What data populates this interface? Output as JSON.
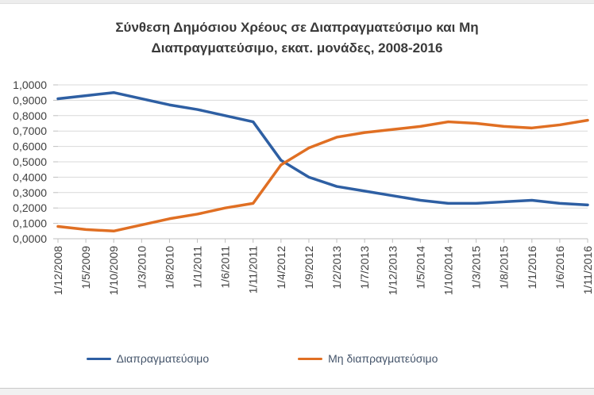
{
  "title": {
    "line1": "Σύνθεση Δημόσιου Χρέους σε Διαπραγματεύσιμο και Μη",
    "line2": "Διαπραγματεύσιμο, εκατ. μονάδες, 2008-2016"
  },
  "colors": {
    "series1": "#2E5FA3",
    "series2": "#E06F23",
    "gridline": "#d9d9d9",
    "axis": "#bfbfbf",
    "tick_text": "#404040",
    "title_text": "#3a3a3a",
    "legend_text": "#44546a"
  },
  "chart_data": {
    "type": "line",
    "title": "Σύνθεση Δημόσιου Χρέους σε Διαπραγματεύσιμο και Μη Διαπραγματεύσιμο, εκατ. μονάδες, 2008-2016",
    "xlabel": "",
    "ylabel": "",
    "grid": true,
    "legend_position": "bottom",
    "ylim": [
      0,
      1
    ],
    "ytick_step": 0.1,
    "ytick_labels": [
      "0,0000",
      "0,1000",
      "0,2000",
      "0,3000",
      "0,4000",
      "0,5000",
      "0,6000",
      "0,7000",
      "0,8000",
      "0,9000",
      "1,0000"
    ],
    "categories": [
      "1/12/2008",
      "1/5/2009",
      "1/10/2009",
      "1/3/2010",
      "1/8/2010",
      "1/1/2011",
      "1/6/2011",
      "1/11/2011",
      "1/4/2012",
      "1/9/2012",
      "1/2/2013",
      "1/7/2013",
      "1/12/2013",
      "1/5/2014",
      "1/10/2014",
      "1/3/2015",
      "1/8/2015",
      "1/1/2016",
      "1/6/2016",
      "1/11/2016"
    ],
    "series": [
      {
        "name": "Διαπραγματεύσιμο",
        "color": "#2E5FA3",
        "values": [
          0.91,
          0.93,
          0.95,
          0.91,
          0.87,
          0.84,
          0.8,
          0.76,
          0.51,
          0.4,
          0.34,
          0.31,
          0.28,
          0.25,
          0.23,
          0.23,
          0.24,
          0.25,
          0.23,
          0.22
        ]
      },
      {
        "name": "Μη διαπραγματεύσιμο",
        "color": "#E06F23",
        "values": [
          0.08,
          0.06,
          0.05,
          0.09,
          0.13,
          0.16,
          0.2,
          0.23,
          0.48,
          0.59,
          0.66,
          0.69,
          0.71,
          0.73,
          0.76,
          0.75,
          0.73,
          0.72,
          0.74,
          0.77
        ]
      }
    ]
  }
}
